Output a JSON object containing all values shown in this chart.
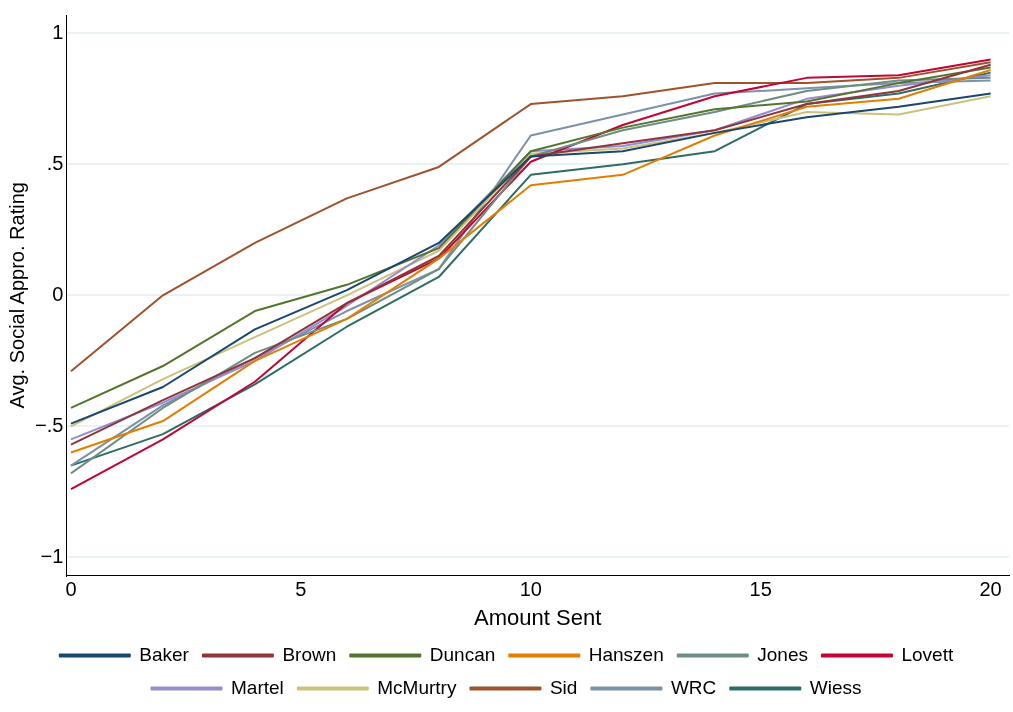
{
  "chart_data": {
    "type": "line",
    "xlabel": "Amount Sent",
    "ylabel": "Avg. Social Appro. Rating",
    "x": [
      0,
      2,
      4,
      6,
      8,
      10,
      12,
      14,
      16,
      18,
      20
    ],
    "xlim": [
      -0.1,
      20.4
    ],
    "xticks": [
      0,
      5,
      10,
      15,
      20
    ],
    "ylim": [
      -1.07,
      1.07
    ],
    "yticks": [
      {
        "value": -1,
        "label": "−1"
      },
      {
        "value": -0.5,
        "label": "−.5"
      },
      {
        "value": 0,
        "label": "0"
      },
      {
        "value": 0.5,
        "label": ".5"
      },
      {
        "value": 1,
        "label": "1"
      }
    ],
    "grid": "y",
    "legend": "bottom",
    "marker": "none",
    "line_style": "solid",
    "series": [
      {
        "name": "Baker",
        "color": "#1a476f",
        "values": [
          -0.49,
          -0.35,
          -0.13,
          0.02,
          0.2,
          0.53,
          0.55,
          0.62,
          0.68,
          0.72,
          0.77
        ]
      },
      {
        "name": "Brown",
        "color": "#90353b",
        "values": [
          -0.57,
          -0.4,
          -0.24,
          -0.03,
          0.15,
          0.53,
          0.58,
          0.63,
          0.73,
          0.78,
          0.88
        ]
      },
      {
        "name": "Duncan",
        "color": "#55752f",
        "values": [
          -0.43,
          -0.27,
          -0.06,
          0.04,
          0.18,
          0.55,
          0.64,
          0.71,
          0.74,
          0.81,
          0.87
        ]
      },
      {
        "name": "Hanszen",
        "color": "#e37e00",
        "values": [
          -0.6,
          -0.48,
          -0.25,
          -0.09,
          0.14,
          0.42,
          0.46,
          0.61,
          0.72,
          0.75,
          0.86
        ]
      },
      {
        "name": "Jones",
        "color": "#6e8e84",
        "values": [
          -0.68,
          -0.43,
          -0.22,
          -0.09,
          0.1,
          0.53,
          0.63,
          0.7,
          0.78,
          0.82,
          0.83
        ]
      },
      {
        "name": "Lovett",
        "color": "#c10534",
        "values": [
          -0.74,
          -0.55,
          -0.33,
          -0.03,
          0.14,
          0.51,
          0.65,
          0.76,
          0.83,
          0.84,
          0.9
        ]
      },
      {
        "name": "Martel",
        "color": "#938dd2",
        "values": [
          -0.55,
          -0.41,
          -0.25,
          -0.04,
          0.19,
          0.55,
          0.57,
          0.63,
          0.75,
          0.8,
          0.84
        ]
      },
      {
        "name": "McMurtry",
        "color": "#cac27e",
        "values": [
          -0.5,
          -0.32,
          -0.16,
          0.0,
          0.17,
          0.54,
          0.56,
          0.62,
          0.7,
          0.69,
          0.76
        ]
      },
      {
        "name": "Sid",
        "color": "#a0522d",
        "values": [
          -0.29,
          0.0,
          0.2,
          0.37,
          0.49,
          0.73,
          0.76,
          0.81,
          0.81,
          0.83,
          0.89
        ]
      },
      {
        "name": "WRC",
        "color": "#7b92a8",
        "values": [
          -0.65,
          -0.42,
          -0.24,
          -0.06,
          0.1,
          0.61,
          0.69,
          0.77,
          0.79,
          0.81,
          0.82
        ]
      },
      {
        "name": "Wiess",
        "color": "#2d6d66",
        "values": [
          -0.65,
          -0.53,
          -0.34,
          -0.12,
          0.07,
          0.46,
          0.5,
          0.55,
          0.73,
          0.77,
          0.85
        ]
      }
    ]
  }
}
